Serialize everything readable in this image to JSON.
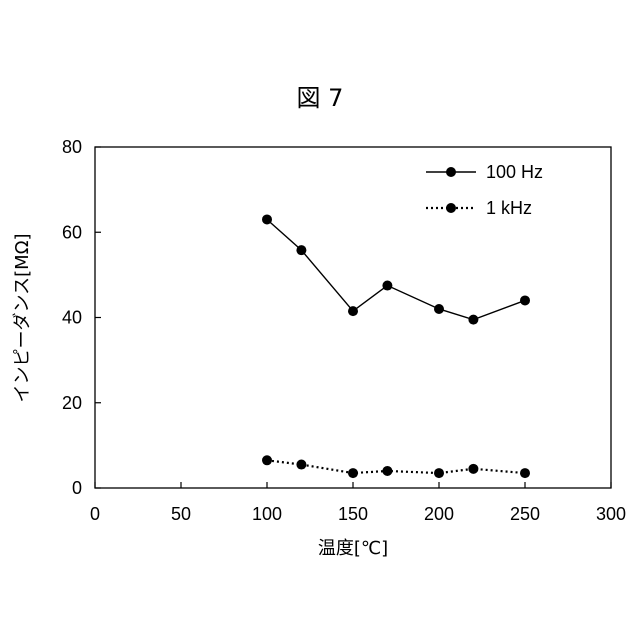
{
  "figure_title": "図 7",
  "chart_data": {
    "type": "line",
    "xlabel": "温度[℃]",
    "ylabel": "インピーダンス[MΩ]",
    "xlim": [
      0,
      300
    ],
    "ylim": [
      0,
      80
    ],
    "xticks": [
      0,
      50,
      100,
      150,
      200,
      250,
      300
    ],
    "yticks": [
      0,
      20,
      40,
      60,
      80
    ],
    "grid": false,
    "legend_position": "top-right",
    "series": [
      {
        "name": "100 Hz",
        "style": "solid",
        "color": "#000000",
        "x": [
          100,
          120,
          150,
          170,
          200,
          220,
          250
        ],
        "y": [
          63,
          55.8,
          41.5,
          47.5,
          42,
          39.5,
          44
        ]
      },
      {
        "name": "1 kHz",
        "style": "dotted",
        "color": "#000000",
        "x": [
          100,
          120,
          150,
          170,
          200,
          220,
          250
        ],
        "y": [
          6.5,
          5.5,
          3.5,
          4,
          3.5,
          4.5,
          3.5
        ]
      }
    ]
  }
}
